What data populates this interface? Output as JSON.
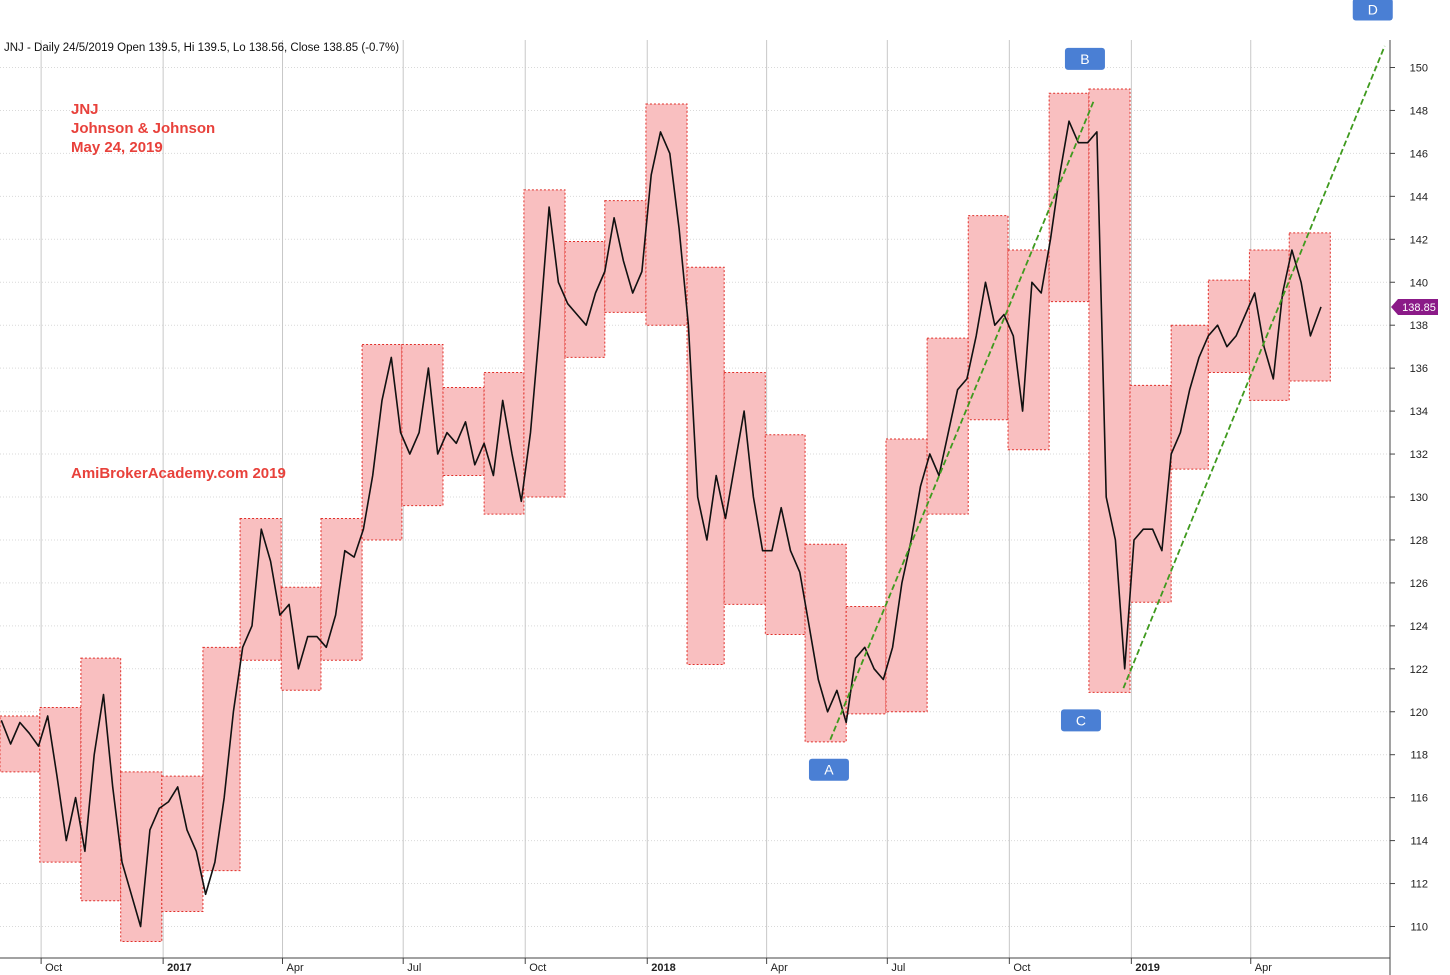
{
  "header": {
    "text": "JNJ - Daily 24/5/2019 Open 139.5, Hi 139.5, Lo 138.56, Close 138.85 (-0.7%)"
  },
  "annotations": {
    "title_lines": [
      "JNJ",
      "Johnson & Johnson",
      "May 24, 2019"
    ],
    "watermark": "AmiBrokerAcademy.com  2019"
  },
  "colors": {
    "box_fill": "#f9bfc0",
    "box_border": "#e0302a",
    "price_line": "#111111",
    "trend_line": "#3f9a1e",
    "marker_bg": "#4a7fd4",
    "badge_bg": "#8b1a88",
    "grid": "#d9d9d9",
    "annotation_text": "#e8413b"
  },
  "chart_data": {
    "type": "line",
    "title": "JNJ - Daily 24/5/2019 Open 139.5, Hi 139.5, Lo 138.56, Close 138.85 (-0.7%)",
    "xlabel": "",
    "ylabel": "",
    "ylim": [
      108.7,
      152.0
    ],
    "y_ticks": [
      110,
      112,
      114,
      116,
      118,
      120,
      122,
      124,
      126,
      128,
      130,
      132,
      134,
      136,
      138,
      140,
      142,
      144,
      146,
      148,
      150
    ],
    "x_ticks": [
      {
        "label": "Oct",
        "date": "2016-10-01"
      },
      {
        "label": "2017",
        "date": "2017-01-01",
        "year": true
      },
      {
        "label": "Apr",
        "date": "2017-04-01"
      },
      {
        "label": "Jul",
        "date": "2017-07-01"
      },
      {
        "label": "Oct",
        "date": "2017-10-01"
      },
      {
        "label": "2018",
        "date": "2018-01-01",
        "year": true
      },
      {
        "label": "Apr",
        "date": "2018-04-01"
      },
      {
        "label": "Jul",
        "date": "2018-07-01"
      },
      {
        "label": "Oct",
        "date": "2018-10-01"
      },
      {
        "label": "2019",
        "date": "2019-01-01",
        "year": true
      },
      {
        "label": "Apr",
        "date": "2019-04-01"
      }
    ],
    "x_range": [
      "2016-08-31",
      "2019-07-15"
    ],
    "grid": true,
    "last_price": 138.85,
    "last_price_label": "138.85",
    "series": [
      {
        "name": "JNJ",
        "points": [
          [
            "2016-09-01",
            119.6
          ],
          [
            "2016-09-08",
            118.5
          ],
          [
            "2016-09-15",
            119.5
          ],
          [
            "2016-09-22",
            119.0
          ],
          [
            "2016-09-29",
            118.4
          ],
          [
            "2016-10-06",
            119.8
          ],
          [
            "2016-10-13",
            117.0
          ],
          [
            "2016-10-20",
            114.0
          ],
          [
            "2016-10-27",
            116.0
          ],
          [
            "2016-11-03",
            113.5
          ],
          [
            "2016-11-10",
            118.0
          ],
          [
            "2016-11-17",
            120.8
          ],
          [
            "2016-11-24",
            116.5
          ],
          [
            "2016-12-01",
            113.0
          ],
          [
            "2016-12-08",
            111.5
          ],
          [
            "2016-12-15",
            110.0
          ],
          [
            "2016-12-22",
            114.5
          ],
          [
            "2016-12-29",
            115.5
          ],
          [
            "2017-01-05",
            115.8
          ],
          [
            "2017-01-12",
            116.5
          ],
          [
            "2017-01-19",
            114.5
          ],
          [
            "2017-01-26",
            113.5
          ],
          [
            "2017-02-02",
            111.5
          ],
          [
            "2017-02-09",
            113.0
          ],
          [
            "2017-02-16",
            116.0
          ],
          [
            "2017-02-23",
            120.0
          ],
          [
            "2017-03-02",
            123.0
          ],
          [
            "2017-03-09",
            124.0
          ],
          [
            "2017-03-16",
            128.5
          ],
          [
            "2017-03-23",
            127.0
          ],
          [
            "2017-03-30",
            124.5
          ],
          [
            "2017-04-06",
            125.0
          ],
          [
            "2017-04-13",
            122.0
          ],
          [
            "2017-04-20",
            123.5
          ],
          [
            "2017-04-27",
            123.5
          ],
          [
            "2017-05-04",
            123.0
          ],
          [
            "2017-05-11",
            124.5
          ],
          [
            "2017-05-18",
            127.5
          ],
          [
            "2017-05-25",
            127.2
          ],
          [
            "2017-06-01",
            128.5
          ],
          [
            "2017-06-08",
            131.0
          ],
          [
            "2017-06-15",
            134.5
          ],
          [
            "2017-06-22",
            136.5
          ],
          [
            "2017-06-29",
            133.0
          ],
          [
            "2017-07-06",
            132.0
          ],
          [
            "2017-07-13",
            133.0
          ],
          [
            "2017-07-20",
            136.0
          ],
          [
            "2017-07-27",
            132.0
          ],
          [
            "2017-08-03",
            133.0
          ],
          [
            "2017-08-10",
            132.5
          ],
          [
            "2017-08-17",
            133.5
          ],
          [
            "2017-08-24",
            131.5
          ],
          [
            "2017-08-31",
            132.5
          ],
          [
            "2017-09-07",
            131.0
          ],
          [
            "2017-09-14",
            134.5
          ],
          [
            "2017-09-21",
            132.0
          ],
          [
            "2017-09-28",
            129.8
          ],
          [
            "2017-10-05",
            133.0
          ],
          [
            "2017-10-12",
            138.0
          ],
          [
            "2017-10-19",
            143.5
          ],
          [
            "2017-10-26",
            140.0
          ],
          [
            "2017-11-02",
            139.0
          ],
          [
            "2017-11-09",
            138.5
          ],
          [
            "2017-11-16",
            138.0
          ],
          [
            "2017-11-23",
            139.5
          ],
          [
            "2017-11-30",
            140.5
          ],
          [
            "2017-12-07",
            143.0
          ],
          [
            "2017-12-14",
            141.0
          ],
          [
            "2017-12-21",
            139.5
          ],
          [
            "2017-12-28",
            140.5
          ],
          [
            "2018-01-04",
            145.0
          ],
          [
            "2018-01-11",
            147.0
          ],
          [
            "2018-01-18",
            146.0
          ],
          [
            "2018-01-25",
            142.5
          ],
          [
            "2018-02-01",
            138.0
          ],
          [
            "2018-02-08",
            130.0
          ],
          [
            "2018-02-15",
            128.0
          ],
          [
            "2018-02-22",
            131.0
          ],
          [
            "2018-03-01",
            129.0
          ],
          [
            "2018-03-08",
            131.5
          ],
          [
            "2018-03-15",
            134.0
          ],
          [
            "2018-03-22",
            130.0
          ],
          [
            "2018-03-29",
            127.5
          ],
          [
            "2018-04-05",
            127.5
          ],
          [
            "2018-04-12",
            129.5
          ],
          [
            "2018-04-19",
            127.5
          ],
          [
            "2018-04-26",
            126.5
          ],
          [
            "2018-05-03",
            124.0
          ],
          [
            "2018-05-10",
            121.5
          ],
          [
            "2018-05-17",
            120.0
          ],
          [
            "2018-05-24",
            121.0
          ],
          [
            "2018-05-31",
            119.5
          ],
          [
            "2018-06-07",
            122.5
          ],
          [
            "2018-06-14",
            123.0
          ],
          [
            "2018-06-21",
            122.0
          ],
          [
            "2018-06-28",
            121.5
          ],
          [
            "2018-07-05",
            123.0
          ],
          [
            "2018-07-12",
            126.0
          ],
          [
            "2018-07-19",
            128.0
          ],
          [
            "2018-07-26",
            130.5
          ],
          [
            "2018-08-02",
            132.0
          ],
          [
            "2018-08-09",
            131.0
          ],
          [
            "2018-08-16",
            133.0
          ],
          [
            "2018-08-23",
            135.0
          ],
          [
            "2018-08-30",
            135.5
          ],
          [
            "2018-09-06",
            137.5
          ],
          [
            "2018-09-13",
            140.0
          ],
          [
            "2018-09-20",
            138.0
          ],
          [
            "2018-09-27",
            138.5
          ],
          [
            "2018-10-04",
            137.5
          ],
          [
            "2018-10-11",
            134.0
          ],
          [
            "2018-10-18",
            140.0
          ],
          [
            "2018-10-25",
            139.5
          ],
          [
            "2018-11-01",
            142.0
          ],
          [
            "2018-11-08",
            145.0
          ],
          [
            "2018-11-15",
            147.5
          ],
          [
            "2018-11-22",
            146.5
          ],
          [
            "2018-11-29",
            146.5
          ],
          [
            "2018-12-06",
            147.0
          ],
          [
            "2018-12-13",
            130.0
          ],
          [
            "2018-12-20",
            128.0
          ],
          [
            "2018-12-27",
            122.0
          ],
          [
            "2019-01-03",
            128.0
          ],
          [
            "2019-01-10",
            128.5
          ],
          [
            "2019-01-17",
            128.5
          ],
          [
            "2019-01-24",
            127.5
          ],
          [
            "2019-01-31",
            132.0
          ],
          [
            "2019-02-07",
            133.0
          ],
          [
            "2019-02-14",
            135.0
          ],
          [
            "2019-02-21",
            136.5
          ],
          [
            "2019-02-28",
            137.5
          ],
          [
            "2019-03-07",
            138.0
          ],
          [
            "2019-03-14",
            137.0
          ],
          [
            "2019-03-21",
            137.5
          ],
          [
            "2019-03-28",
            138.5
          ],
          [
            "2019-04-04",
            139.5
          ],
          [
            "2019-04-11",
            137.0
          ],
          [
            "2019-04-18",
            135.5
          ],
          [
            "2019-04-25",
            139.5
          ],
          [
            "2019-05-02",
            141.5
          ],
          [
            "2019-05-09",
            140.0
          ],
          [
            "2019-05-16",
            137.5
          ],
          [
            "2019-05-24",
            138.85
          ]
        ]
      }
    ],
    "range_boxes": [
      {
        "start": "2016-08-31",
        "end": "2016-09-30",
        "low": 117.2,
        "high": 119.8
      },
      {
        "start": "2016-09-30",
        "end": "2016-10-31",
        "low": 113.0,
        "high": 120.2
      },
      {
        "start": "2016-10-31",
        "end": "2016-11-30",
        "low": 111.2,
        "high": 122.5
      },
      {
        "start": "2016-11-30",
        "end": "2016-12-31",
        "low": 109.3,
        "high": 117.2
      },
      {
        "start": "2016-12-31",
        "end": "2017-01-31",
        "low": 110.7,
        "high": 117.0
      },
      {
        "start": "2017-01-31",
        "end": "2017-02-28",
        "low": 112.6,
        "high": 123.0
      },
      {
        "start": "2017-02-28",
        "end": "2017-03-31",
        "low": 122.4,
        "high": 129.0
      },
      {
        "start": "2017-03-31",
        "end": "2017-04-30",
        "low": 121.0,
        "high": 125.8
      },
      {
        "start": "2017-04-30",
        "end": "2017-05-31",
        "low": 122.4,
        "high": 129.0
      },
      {
        "start": "2017-05-31",
        "end": "2017-06-30",
        "low": 128.0,
        "high": 137.1
      },
      {
        "start": "2017-06-30",
        "end": "2017-07-31",
        "low": 129.6,
        "high": 137.1
      },
      {
        "start": "2017-07-31",
        "end": "2017-08-31",
        "low": 131.0,
        "high": 135.1
      },
      {
        "start": "2017-08-31",
        "end": "2017-09-30",
        "low": 129.2,
        "high": 135.8
      },
      {
        "start": "2017-09-30",
        "end": "2017-10-31",
        "low": 130.0,
        "high": 144.3
      },
      {
        "start": "2017-10-31",
        "end": "2017-11-30",
        "low": 136.5,
        "high": 141.9
      },
      {
        "start": "2017-11-30",
        "end": "2017-12-31",
        "low": 138.6,
        "high": 143.8
      },
      {
        "start": "2017-12-31",
        "end": "2018-01-31",
        "low": 138.0,
        "high": 148.3
      },
      {
        "start": "2018-01-31",
        "end": "2018-02-28",
        "low": 122.2,
        "high": 140.7
      },
      {
        "start": "2018-02-28",
        "end": "2018-03-31",
        "low": 125.0,
        "high": 135.8
      },
      {
        "start": "2018-03-31",
        "end": "2018-04-30",
        "low": 123.6,
        "high": 132.9
      },
      {
        "start": "2018-04-30",
        "end": "2018-05-31",
        "low": 118.6,
        "high": 127.8
      },
      {
        "start": "2018-05-31",
        "end": "2018-06-30",
        "low": 119.9,
        "high": 124.9
      },
      {
        "start": "2018-06-30",
        "end": "2018-07-31",
        "low": 120.0,
        "high": 132.7
      },
      {
        "start": "2018-07-31",
        "end": "2018-08-31",
        "low": 129.2,
        "high": 137.4
      },
      {
        "start": "2018-08-31",
        "end": "2018-09-30",
        "low": 133.6,
        "high": 143.1
      },
      {
        "start": "2018-09-30",
        "end": "2018-10-31",
        "low": 132.2,
        "high": 141.5
      },
      {
        "start": "2018-10-31",
        "end": "2018-11-30",
        "low": 139.1,
        "high": 148.8
      },
      {
        "start": "2018-11-30",
        "end": "2018-12-31",
        "low": 120.9,
        "high": 149.0
      },
      {
        "start": "2018-12-31",
        "end": "2019-01-31",
        "low": 125.1,
        "high": 135.2
      },
      {
        "start": "2019-01-31",
        "end": "2019-02-28",
        "low": 131.3,
        "high": 138.0
      },
      {
        "start": "2019-02-28",
        "end": "2019-03-31",
        "low": 135.8,
        "high": 140.1
      },
      {
        "start": "2019-03-31",
        "end": "2019-04-30",
        "low": 134.5,
        "high": 141.5
      },
      {
        "start": "2019-04-30",
        "end": "2019-05-31",
        "low": 135.4,
        "high": 142.3
      }
    ],
    "trend_lines": [
      {
        "from": [
          "2018-05-19",
          118.7
        ],
        "to": [
          "2018-12-04",
          148.5
        ]
      },
      {
        "from": [
          "2018-12-26",
          121.1
        ],
        "to": [
          "2019-07-11",
          151.0
        ]
      }
    ],
    "markers": [
      {
        "label": "A",
        "date": "2018-05-18",
        "price": 117.3
      },
      {
        "label": "B",
        "date": "2018-11-27",
        "price": 150.4
      },
      {
        "label": "C",
        "date": "2018-11-24",
        "price": 119.6
      },
      {
        "label": "D",
        "date": "2019-07-02",
        "price": 152.7
      }
    ]
  }
}
